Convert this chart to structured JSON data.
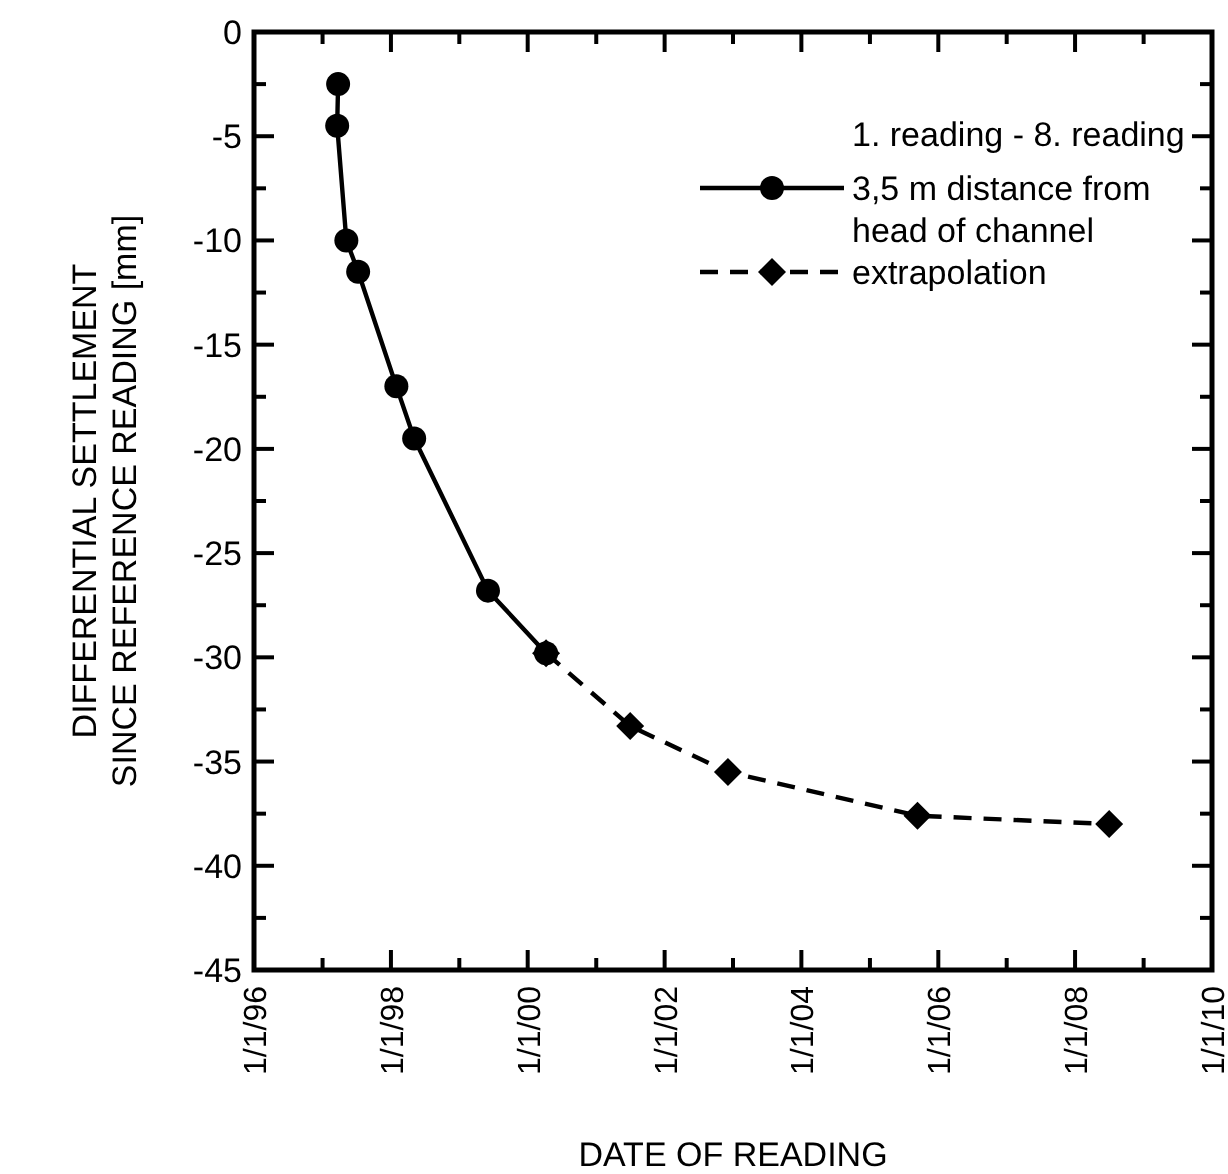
{
  "chart_data": {
    "type": "line",
    "xlabel": "DATE OF READING",
    "ylabel": "DIFFERENTIAL SETTLEMENT\nSINCE REFERENCE READING [mm]",
    "legend_title": "1. reading - 8. reading",
    "legend": "top right",
    "grid": false,
    "xlim": [
      "1996-01-01",
      "2010-01-01"
    ],
    "xticks": [
      {
        "value": "1996-01-01",
        "label": "1/1/96"
      },
      {
        "value": "1997-01-01",
        "label": null
      },
      {
        "value": "1998-01-01",
        "label": "1/1/98"
      },
      {
        "value": "1999-01-01",
        "label": null
      },
      {
        "value": "2000-01-01",
        "label": "1/1/00"
      },
      {
        "value": "2001-01-01",
        "label": null
      },
      {
        "value": "2002-01-01",
        "label": "1/1/02"
      },
      {
        "value": "2003-01-01",
        "label": null
      },
      {
        "value": "2004-01-01",
        "label": "1/1/04"
      },
      {
        "value": "2005-01-01",
        "label": null
      },
      {
        "value": "2006-01-01",
        "label": "1/1/06"
      },
      {
        "value": "2007-01-01",
        "label": null
      },
      {
        "value": "2008-01-01",
        "label": "1/1/08"
      },
      {
        "value": "2009-01-01",
        "label": null
      },
      {
        "value": "2010-01-01",
        "label": "1/1/10"
      }
    ],
    "ylim": [
      -45,
      0
    ],
    "yticks": [
      {
        "value": -45,
        "label": "-45"
      },
      {
        "value": -42.5,
        "label": null
      },
      {
        "value": -40,
        "label": "-40"
      },
      {
        "value": -37.5,
        "label": null
      },
      {
        "value": -35,
        "label": "-35"
      },
      {
        "value": -32.5,
        "label": null
      },
      {
        "value": -30,
        "label": "-30"
      },
      {
        "value": -27.5,
        "label": null
      },
      {
        "value": -25,
        "label": "-25"
      },
      {
        "value": -22.5,
        "label": null
      },
      {
        "value": -20,
        "label": "-20"
      },
      {
        "value": -17.5,
        "label": null
      },
      {
        "value": -15,
        "label": "-15"
      },
      {
        "value": -12.5,
        "label": null
      },
      {
        "value": -10,
        "label": "-10"
      },
      {
        "value": -7.5,
        "label": null
      },
      {
        "value": -5,
        "label": "-5"
      },
      {
        "value": -2.5,
        "label": null
      },
      {
        "value": 0,
        "label": "0"
      }
    ],
    "series": [
      {
        "name": "3,5 m distance from head of channel",
        "color": "#000000",
        "marker": "circle",
        "line_style": "solid",
        "x": [
          "1997-03-25",
          "1997-03-20",
          "1997-05-08",
          "1997-07-10",
          "1998-01-30",
          "1998-05-05",
          "1999-06-03",
          "2000-04-08"
        ],
        "values": [
          -2.5,
          -4.5,
          -10,
          -11.5,
          -17,
          -19.5,
          -26.8,
          -29.8
        ]
      },
      {
        "name": "extrapolation",
        "color": "#000000",
        "marker": "diamond",
        "line_style": "dashed",
        "x": [
          "2000-04-08",
          "2001-07-01",
          "2002-12-05",
          "2005-09-12",
          "2008-07-01"
        ],
        "values": [
          -29.8,
          -33.3,
          -35.5,
          -37.6,
          -38.0
        ]
      }
    ]
  }
}
